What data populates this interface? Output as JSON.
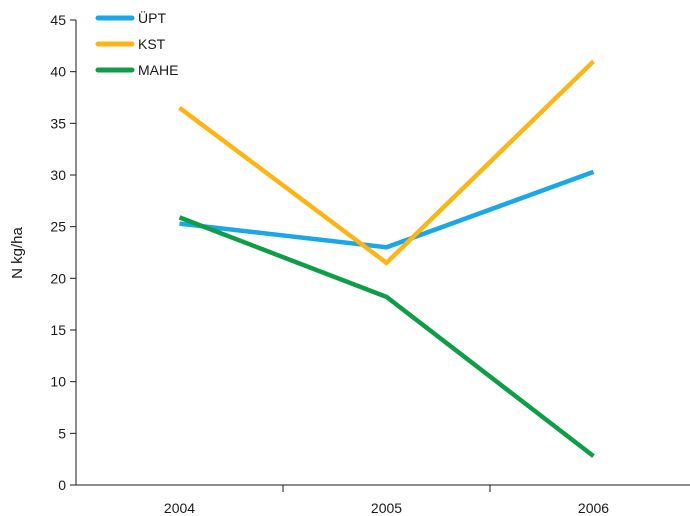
{
  "chart_data": {
    "type": "line",
    "title": "",
    "xlabel": "",
    "ylabel": "N kg/ha",
    "categories": [
      "2004",
      "2005",
      "2006"
    ],
    "ylim": [
      0,
      45
    ],
    "yticks": [
      0,
      5,
      10,
      15,
      20,
      25,
      30,
      35,
      40,
      45
    ],
    "grid": false,
    "legend_position": "top-left",
    "series": [
      {
        "name": "ÜPT",
        "color": "#1aa7e8",
        "values": [
          25.3,
          23.0,
          30.3
        ]
      },
      {
        "name": "KST",
        "color": "#fbb616",
        "values": [
          36.5,
          21.5,
          41.0
        ]
      },
      {
        "name": "MAHE",
        "color": "#0e9e48",
        "values": [
          25.9,
          18.2,
          2.8
        ]
      }
    ]
  }
}
